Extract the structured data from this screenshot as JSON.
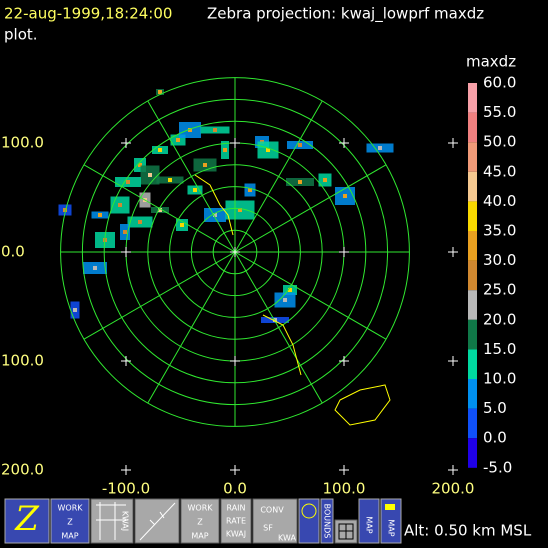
{
  "header": {
    "time": "22-aug-1999,18:24:00",
    "title": "Zebra projection: kwaj_lowprf maxdz",
    "title_cont": "plot."
  },
  "colorbar": {
    "field": "maxdz",
    "labels": [
      "60.0",
      "55.0",
      "50.0",
      "45.0",
      "40.0",
      "35.0",
      "30.0",
      "25.0",
      "20.0",
      "15.0",
      "10.0",
      "5.0",
      "0.0",
      "-5.0"
    ],
    "colors": [
      "#f7a0a8",
      "#f08080",
      "#f09a78",
      "#f5c890",
      "#f8d800",
      "#e8a020",
      "#d08830",
      "#b8b8b8",
      "#107848",
      "#00d8a0",
      "#0090f0",
      "#1050f8",
      "#2000e8",
      "#8800f0"
    ]
  },
  "y_labels": [
    "100.0",
    "0.0",
    "100.0",
    "200.0"
  ],
  "x_labels": [
    "-100.0",
    "0.0",
    "100.0",
    "200.0"
  ],
  "icons": {
    "z": "Z",
    "work1": [
      "WORK",
      "Z",
      "MAP"
    ],
    "kwaj": "KWAJ",
    "work2": [
      "WORK",
      "Z",
      "MAP"
    ],
    "rain": [
      "RAIN",
      "RATE",
      "KWAJ"
    ],
    "conv": [
      "CONV",
      "SF",
      "KWA"
    ],
    "bounds": "BOUNDS",
    "map1": "MAP",
    "map2": "MAP"
  },
  "footer": "Alt: 0.50 km MSL"
}
